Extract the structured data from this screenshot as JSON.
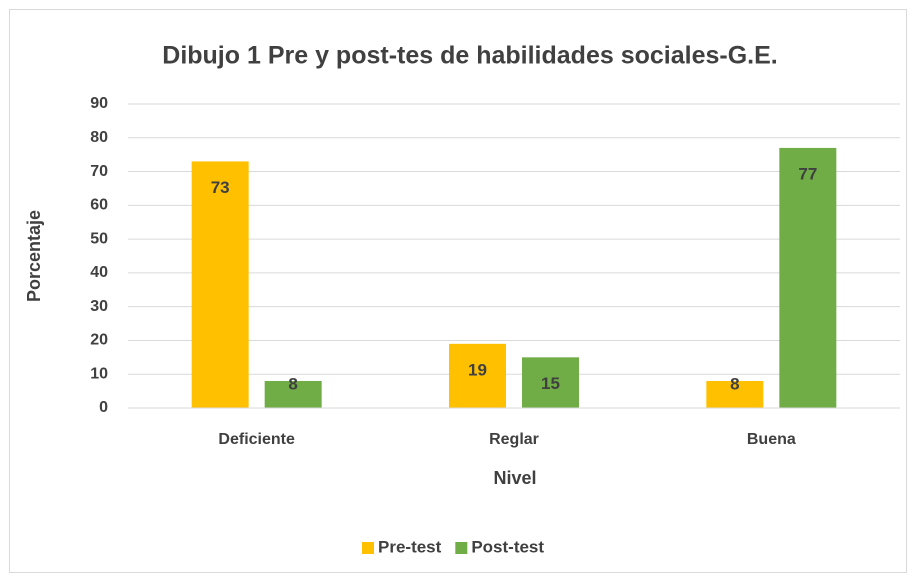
{
  "chart_data": {
    "type": "bar",
    "title": "Dibujo 1 Pre y post-tes de habilidades sociales-G.E.",
    "x_label": "Nivel",
    "y_label": "Porcentaje",
    "categories": [
      "Deficiente",
      "Reglar",
      "Buena"
    ],
    "series": [
      {
        "name": "Pre-test",
        "color": "#ffc000",
        "values": [
          73,
          19,
          8
        ]
      },
      {
        "name": "Post-test",
        "color": "#70ad47",
        "values": [
          8,
          15,
          77
        ]
      }
    ],
    "ylim": [
      0,
      90
    ],
    "yticks": [
      0,
      10,
      20,
      30,
      40,
      50,
      60,
      70,
      80,
      90
    ],
    "grid": true,
    "legend": "bottom"
  }
}
